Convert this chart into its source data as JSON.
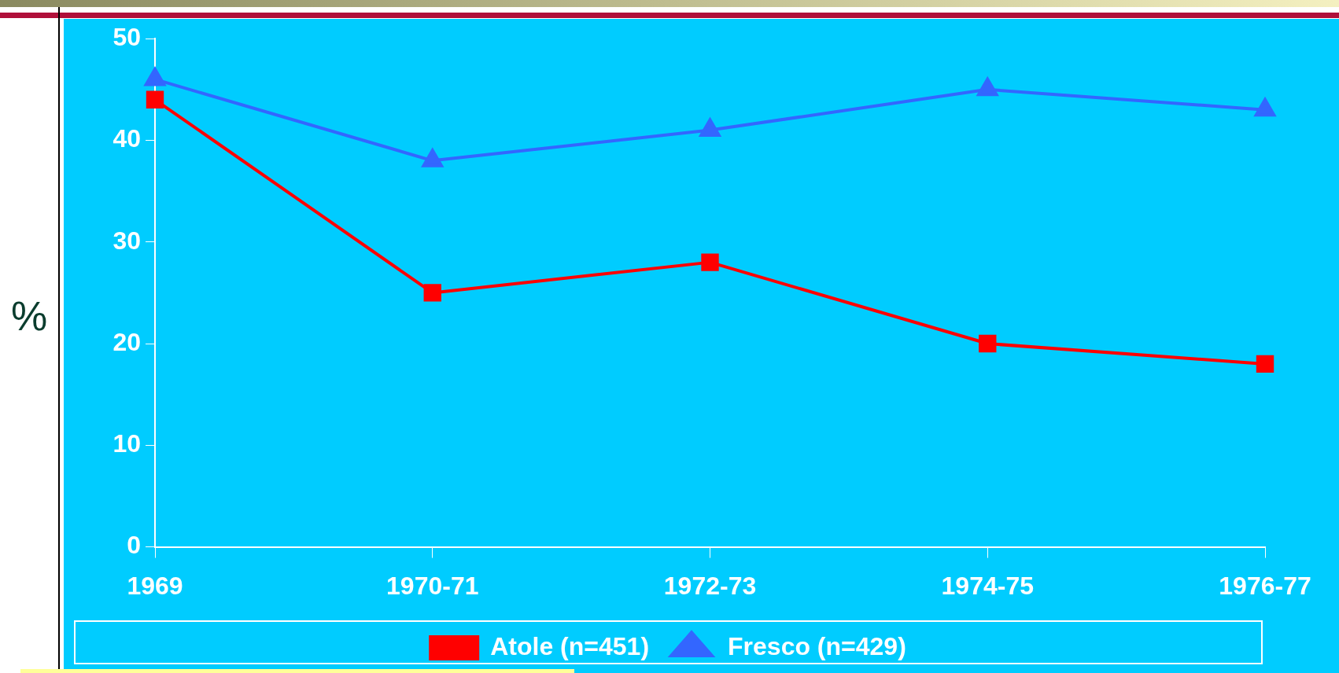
{
  "chart_data": {
    "type": "line",
    "ylabel": "%",
    "categories": [
      "1969",
      "1970-71",
      "1972-73",
      "1974-75",
      "1976-77"
    ],
    "series": [
      {
        "name": "Atole (n=451)",
        "color": "#ff0000",
        "marker": "square",
        "values": [
          44,
          25,
          28,
          20,
          18
        ]
      },
      {
        "name": "Fresco (n=429)",
        "color": "#3366ff",
        "marker": "triangle",
        "values": [
          46,
          38,
          41,
          45,
          43
        ]
      }
    ],
    "ylim": [
      0,
      50
    ],
    "yticks": [
      0,
      10,
      20,
      30,
      40,
      50
    ],
    "legend": "bottom",
    "line_style": "solid"
  }
}
